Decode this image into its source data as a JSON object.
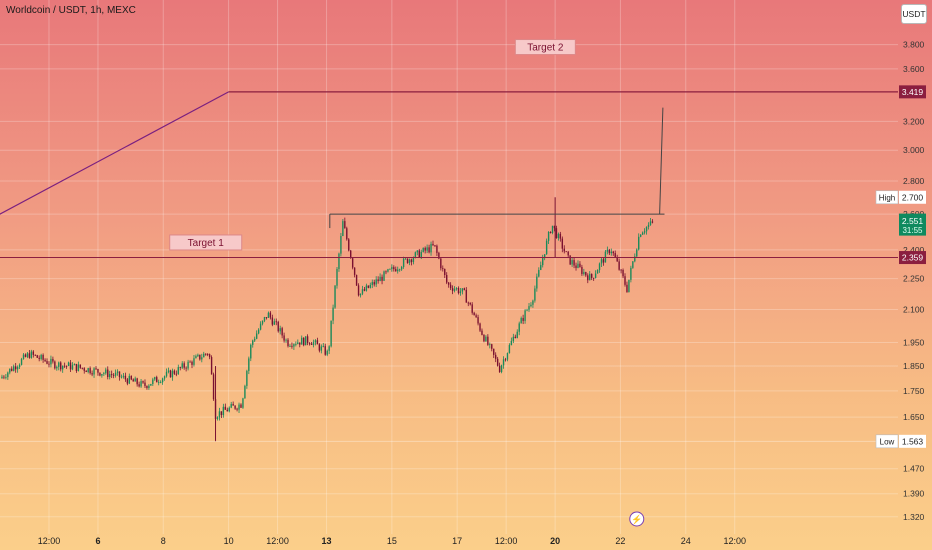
{
  "header": {
    "title": "Worldcoin / USDT, 1h, MEXC",
    "currency_button": "USDT"
  },
  "replay_icon": "lightning-icon",
  "colors": {
    "up": "#1a8a5a",
    "down": "#7a1030",
    "target_line": "#8b1e3f",
    "trend_line": "#7a2080",
    "last_price_bg": "#0f8a5f"
  },
  "chart_data": {
    "type": "candlestick",
    "y_scale": "log",
    "y_range": [
      1.27,
      4.2
    ],
    "y_ticks": [
      "3.800",
      "3.600",
      "3.200",
      "3.000",
      "2.800",
      "2.600",
      "2.400",
      "2.250",
      "2.100",
      "1.950",
      "1.850",
      "1.750",
      "1.650",
      "1.470",
      "1.390",
      "1.320"
    ],
    "x_range": [
      0,
      27.5
    ],
    "x_ticks": [
      {
        "label": "12:00",
        "x": 1.5,
        "bold": false
      },
      {
        "label": "6",
        "x": 3,
        "bold": true
      },
      {
        "label": "8",
        "x": 5,
        "bold": false
      },
      {
        "label": "10",
        "x": 7,
        "bold": false
      },
      {
        "label": "12:00",
        "x": 8.5,
        "bold": false
      },
      {
        "label": "13",
        "x": 10,
        "bold": true
      },
      {
        "label": "15",
        "x": 12,
        "bold": false
      },
      {
        "label": "17",
        "x": 14,
        "bold": false
      },
      {
        "label": "12:00",
        "x": 15.5,
        "bold": false
      },
      {
        "label": "20",
        "x": 17,
        "bold": true
      },
      {
        "label": "22",
        "x": 19,
        "bold": false
      },
      {
        "label": "24",
        "x": 21,
        "bold": false
      },
      {
        "label": "12:00",
        "x": 22.5,
        "bold": false
      }
    ],
    "price_path": [
      [
        0,
        1.8
      ],
      [
        0.9,
        1.9
      ],
      [
        1.6,
        1.86
      ],
      [
        2.6,
        1.84
      ],
      [
        3.6,
        1.81
      ],
      [
        4.4,
        1.77
      ],
      [
        5.4,
        1.83
      ],
      [
        6.4,
        1.91
      ],
      [
        6.6,
        1.66
      ],
      [
        7.4,
        1.7
      ],
      [
        7.7,
        1.95
      ],
      [
        8.2,
        2.08
      ],
      [
        8.8,
        1.95
      ],
      [
        9.5,
        1.96
      ],
      [
        10.05,
        1.9
      ],
      [
        10.5,
        2.55
      ],
      [
        11,
        2.17
      ],
      [
        11.8,
        2.27
      ],
      [
        12.5,
        2.35
      ],
      [
        13.3,
        2.42
      ],
      [
        13.7,
        2.22
      ],
      [
        14.2,
        2.18
      ],
      [
        14.8,
        1.98
      ],
      [
        15.3,
        1.84
      ],
      [
        16.3,
        2.15
      ],
      [
        16.9,
        2.54
      ],
      [
        17.4,
        2.35
      ],
      [
        18.1,
        2.25
      ],
      [
        18.7,
        2.41
      ],
      [
        19.2,
        2.2
      ],
      [
        19.6,
        2.5
      ],
      [
        20.0,
        2.551
      ]
    ],
    "last_close": 2.551,
    "horizontal_lines": [
      {
        "name": "Target 2",
        "price": 3.419
      },
      {
        "name": "Target 1",
        "price": 2.359
      }
    ],
    "range_top": 2.6,
    "trend_line": [
      [
        -0.5,
        2.55
      ],
      [
        7,
        3.419
      ]
    ],
    "projection": [
      [
        20.2,
        2.6
      ],
      [
        20.3,
        3.3
      ]
    ],
    "min_marker": 1.563,
    "labels": {
      "target2": "Target 2",
      "target2_price": "3.419",
      "target1": "Target 1",
      "target1_price": "2.359",
      "high": "High",
      "high_value": "2.700",
      "low": "Low",
      "low_value": "1.563",
      "last_price": "2.551",
      "countdown": "31:55",
      "replay": "⚡"
    }
  }
}
